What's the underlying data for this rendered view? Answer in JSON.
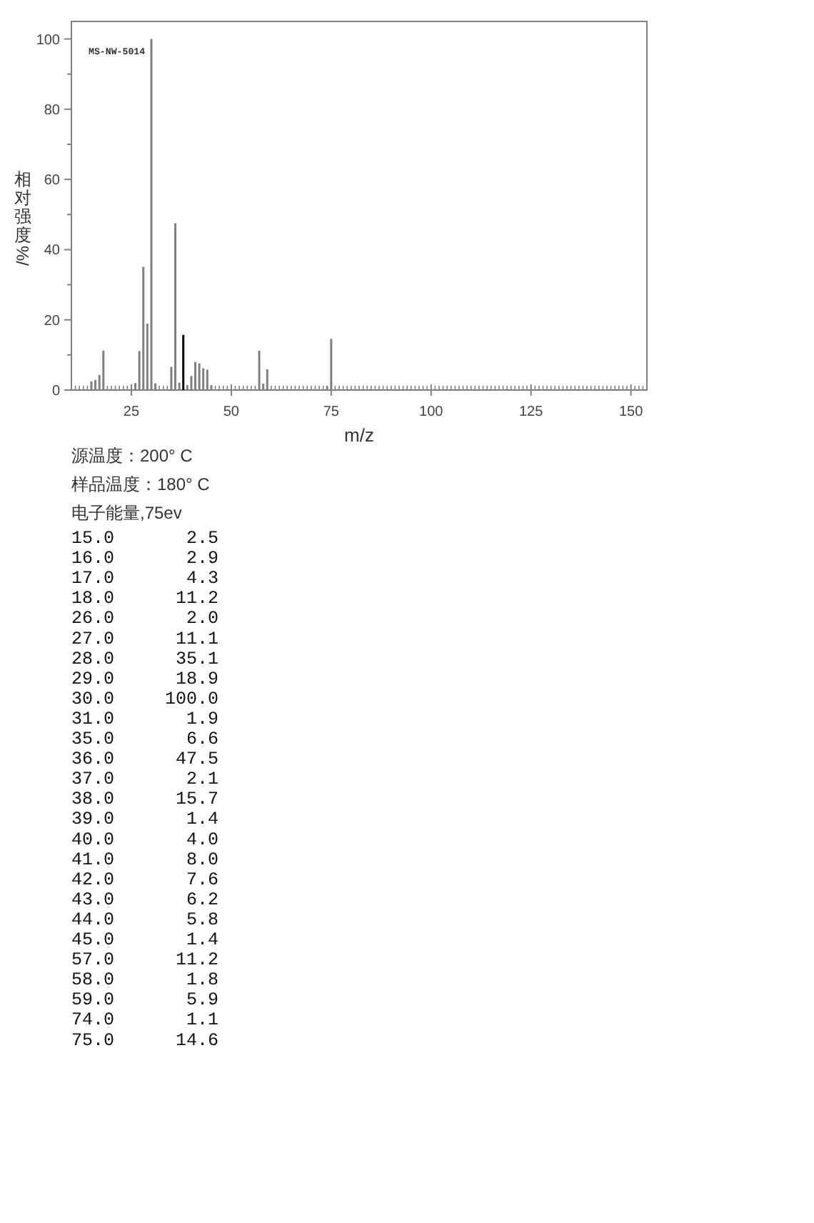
{
  "chart_data": {
    "type": "bar",
    "xlabel": "m/z",
    "ylabel": "相对强度/%",
    "annotations": [
      "MS-NW-5014",
      "源温度：200° C",
      "样品温度：180° C",
      "电子能量,75ev",
      "15.0 2.5",
      "16.0 2.9",
      "17.0 4.3",
      "18.0 11.2",
      "26.0 2.0",
      "27.0 11.1",
      "28.0 35.1",
      "29.0 18.9",
      "30.0 100.0",
      "31.0 1.9",
      "35.0 6.6",
      "36.0 47.5",
      "37.0 2.1",
      "38.0 15.7",
      "39.0 1.4",
      "40.0 4.0",
      "41.0 8.0",
      "42.0 7.6",
      "43.0 6.2",
      "44.0 5.8",
      "45.0 1.4",
      "57.0 11.2",
      "58.0 1.8",
      "59.0 5.9",
      "74.0 1.1",
      "75.0 14.6"
    ],
    "x": [
      15,
      16,
      17,
      18,
      26,
      27,
      28,
      29,
      30,
      31,
      35,
      36,
      37,
      38,
      39,
      40,
      41,
      42,
      43,
      44,
      45,
      57,
      58,
      59,
      74,
      75
    ],
    "values": [
      2.5,
      2.9,
      4.3,
      11.2,
      2.0,
      11.1,
      35.1,
      18.9,
      100.0,
      1.9,
      6.6,
      47.5,
      2.1,
      15.7,
      1.4,
      4.0,
      8.0,
      7.6,
      6.2,
      5.8,
      1.4,
      11.2,
      1.8,
      5.9,
      1.1,
      14.6
    ],
    "colors": [
      "#808080",
      "#808080",
      "#808080",
      "#808080",
      "#808080",
      "#808080",
      "#808080",
      "#808080",
      "#808080",
      "#808080",
      "#808080",
      "#808080",
      "#808080",
      "#000000",
      "#808080",
      "#808080",
      "#808080",
      "#808080",
      "#808080",
      "#808080",
      "#808080",
      "#808080",
      "#808080",
      "#808080",
      "#808080",
      "#808080"
    ],
    "xlim": [
      10,
      154
    ],
    "ylim": [
      0,
      105
    ],
    "xticks": [
      {
        "value": 11,
        "label": null
      },
      {
        "value": 12,
        "label": null
      },
      {
        "value": 13,
        "label": null
      },
      {
        "value": 14,
        "label": null
      },
      {
        "value": 15,
        "label": null
      },
      {
        "value": 16,
        "label": null
      },
      {
        "value": 17,
        "label": null
      },
      {
        "value": 18,
        "label": null
      },
      {
        "value": 19,
        "label": null
      },
      {
        "value": 20,
        "label": null
      },
      {
        "value": 21,
        "label": null
      },
      {
        "value": 22,
        "label": null
      },
      {
        "value": 23,
        "label": null
      },
      {
        "value": 24,
        "label": null
      },
      25,
      {
        "value": 26,
        "label": null
      },
      {
        "value": 27,
        "label": null
      },
      {
        "value": 28,
        "label": null
      },
      {
        "value": 29,
        "label": null
      },
      {
        "value": 30,
        "label": null
      },
      {
        "value": 31,
        "label": null
      },
      {
        "value": 32,
        "label": null
      },
      {
        "value": 33,
        "label": null
      },
      {
        "value": 34,
        "label": null
      },
      {
        "value": 35,
        "label": null
      },
      {
        "value": 36,
        "label": null
      },
      {
        "value": 37,
        "label": null
      },
      {
        "value": 38,
        "label": null
      },
      {
        "value": 39,
        "label": null
      },
      {
        "value": 40,
        "label": null
      },
      {
        "value": 41,
        "label": null
      },
      {
        "value": 42,
        "label": null
      },
      {
        "value": 43,
        "label": null
      },
      {
        "value": 44,
        "label": null
      },
      {
        "value": 45,
        "label": null
      },
      {
        "value": 46,
        "label": null
      },
      {
        "value": 47,
        "label": null
      },
      {
        "value": 48,
        "label": null
      },
      {
        "value": 49,
        "label": null
      },
      50,
      {
        "value": 51,
        "label": null
      },
      {
        "value": 52,
        "label": null
      },
      {
        "value": 53,
        "label": null
      },
      {
        "value": 54,
        "label": null
      },
      {
        "value": 55,
        "label": null
      },
      {
        "value": 56,
        "label": null
      },
      {
        "value": 57,
        "label": null
      },
      {
        "value": 58,
        "label": null
      },
      {
        "value": 59,
        "label": null
      },
      {
        "value": 60,
        "label": null
      },
      {
        "value": 61,
        "label": null
      },
      {
        "value": 62,
        "label": null
      },
      {
        "value": 63,
        "label": null
      },
      {
        "value": 64,
        "label": null
      },
      {
        "value": 65,
        "label": null
      },
      {
        "value": 66,
        "label": null
      },
      {
        "value": 67,
        "label": null
      },
      {
        "value": 68,
        "label": null
      },
      {
        "value": 69,
        "label": null
      },
      {
        "value": 70,
        "label": null
      },
      {
        "value": 71,
        "label": null
      },
      {
        "value": 72,
        "label": null
      },
      {
        "value": 73,
        "label": null
      },
      {
        "value": 74,
        "label": null
      },
      75,
      {
        "value": 76,
        "label": null
      },
      {
        "value": 77,
        "label": null
      },
      {
        "value": 78,
        "label": null
      },
      {
        "value": 79,
        "label": null
      },
      {
        "value": 80,
        "label": null
      },
      {
        "value": 81,
        "label": null
      },
      {
        "value": 82,
        "label": null
      },
      {
        "value": 83,
        "label": null
      },
      {
        "value": 84,
        "label": null
      },
      {
        "value": 85,
        "label": null
      },
      {
        "value": 86,
        "label": null
      },
      {
        "value": 87,
        "label": null
      },
      {
        "value": 88,
        "label": null
      },
      {
        "value": 89,
        "label": null
      },
      {
        "value": 90,
        "label": null
      },
      {
        "value": 91,
        "label": null
      },
      {
        "value": 92,
        "label": null
      },
      {
        "value": 93,
        "label": null
      },
      {
        "value": 94,
        "label": null
      },
      {
        "value": 95,
        "label": null
      },
      {
        "value": 96,
        "label": null
      },
      {
        "value": 97,
        "label": null
      },
      {
        "value": 98,
        "label": null
      },
      {
        "value": 99,
        "label": null
      },
      100,
      {
        "value": 101,
        "label": null
      },
      {
        "value": 102,
        "label": null
      },
      {
        "value": 103,
        "label": null
      },
      {
        "value": 104,
        "label": null
      },
      {
        "value": 105,
        "label": null
      },
      {
        "value": 106,
        "label": null
      },
      {
        "value": 107,
        "label": null
      },
      {
        "value": 108,
        "label": null
      },
      {
        "value": 109,
        "label": null
      },
      {
        "value": 110,
        "label": null
      },
      {
        "value": 111,
        "label": null
      },
      {
        "value": 112,
        "label": null
      },
      {
        "value": 113,
        "label": null
      },
      {
        "value": 114,
        "label": null
      },
      {
        "value": 115,
        "label": null
      },
      {
        "value": 116,
        "label": null
      },
      {
        "value": 117,
        "label": null
      },
      {
        "value": 118,
        "label": null
      },
      {
        "value": 119,
        "label": null
      },
      {
        "value": 120,
        "label": null
      },
      {
        "value": 121,
        "label": null
      },
      {
        "value": 122,
        "label": null
      },
      {
        "value": 123,
        "label": null
      },
      {
        "value": 124,
        "label": null
      },
      125,
      {
        "value": 126,
        "label": null
      },
      {
        "value": 127,
        "label": null
      },
      {
        "value": 128,
        "label": null
      },
      {
        "value": 129,
        "label": null
      },
      {
        "value": 130,
        "label": null
      },
      {
        "value": 131,
        "label": null
      },
      {
        "value": 132,
        "label": null
      },
      {
        "value": 133,
        "label": null
      },
      {
        "value": 134,
        "label": null
      },
      {
        "value": 135,
        "label": null
      },
      {
        "value": 136,
        "label": null
      },
      {
        "value": 137,
        "label": null
      },
      {
        "value": 138,
        "label": null
      },
      {
        "value": 139,
        "label": null
      },
      {
        "value": 140,
        "label": null
      },
      {
        "value": 141,
        "label": null
      },
      {
        "value": 142,
        "label": null
      },
      {
        "value": 143,
        "label": null
      },
      {
        "value": 144,
        "label": null
      },
      {
        "value": 145,
        "label": null
      },
      {
        "value": 146,
        "label": null
      },
      {
        "value": 147,
        "label": null
      },
      {
        "value": 148,
        "label": null
      },
      {
        "value": 149,
        "label": null
      },
      150,
      {
        "value": 151,
        "label": null
      },
      {
        "value": 152,
        "label": null
      },
      {
        "value": 153,
        "label": null
      }
    ],
    "yticks": [
      0,
      {
        "value": 10,
        "label": null
      },
      20,
      {
        "value": 30,
        "label": null
      },
      40,
      {
        "value": 50,
        "label": null
      },
      60,
      {
        "value": 70,
        "label": null
      },
      80,
      {
        "value": 90,
        "label": null
      },
      100
    ]
  }
}
